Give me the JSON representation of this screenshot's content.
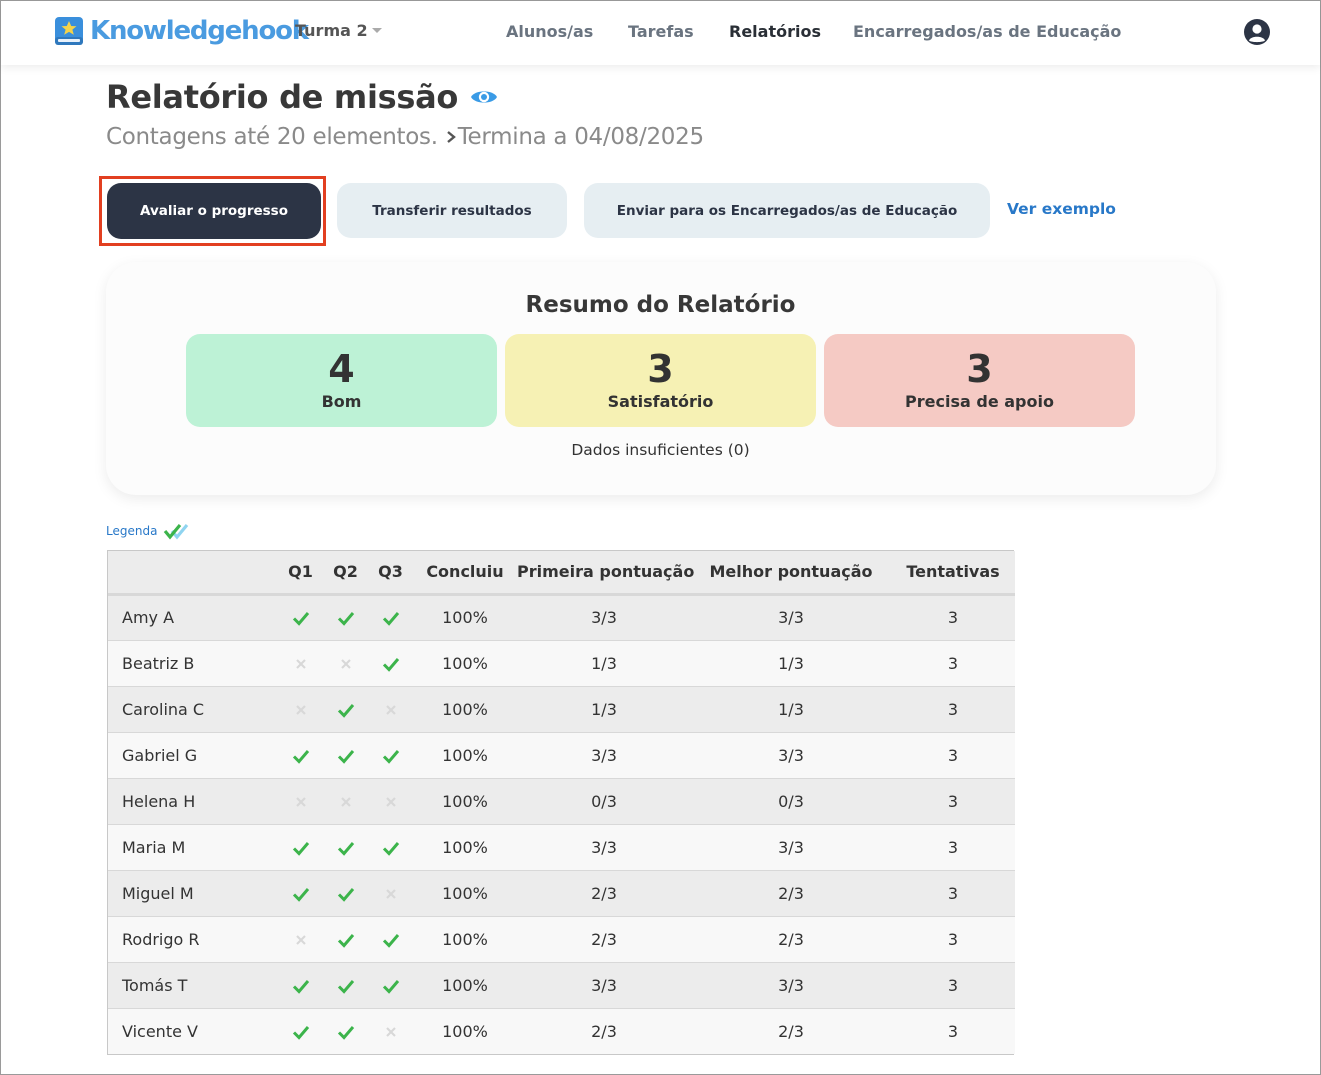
{
  "header": {
    "logo_text": "Knowledgehook",
    "class_name": "Turma 2",
    "nav": [
      {
        "label": "Alunos/as",
        "active": false
      },
      {
        "label": "Tarefas",
        "active": false
      },
      {
        "label": "Relatórios",
        "active": true
      },
      {
        "label": "Encarregados/as de Educação",
        "active": false
      }
    ],
    "user_icon": "user-circle-icon"
  },
  "report": {
    "title": "Relatório de missão",
    "subtitle_count": "Contagens até 20 elementos.",
    "subtitle_end": "Termina a 04/08/2025"
  },
  "actions": {
    "evaluate": "Avaliar o progresso",
    "transfer": "Transferir resultados",
    "send": "Enviar para os Encarregados/as de Educação",
    "example": "Ver exemplo"
  },
  "summary": {
    "title": "Resumo do Relatório",
    "good": {
      "count": "4",
      "label": "Bom"
    },
    "satisfactory": {
      "count": "3",
      "label": "Satisfatório"
    },
    "needs_support": {
      "count": "3",
      "label": "Precisa de apoio"
    },
    "insufficient": "Dados insuficientes (0)"
  },
  "legend": "Legenda",
  "colors": {
    "check": "#3cb44b",
    "cross": "#d8d8d8",
    "accent": "#2878c8",
    "highlight": "#e23f20"
  },
  "table": {
    "headers": [
      "",
      "Q1",
      "Q2",
      "Q3",
      "Concluiu",
      "Primeira pontuação",
      "Melhor pontuação",
      "Tentativas"
    ],
    "rows": [
      {
        "name": "Amy A",
        "q": [
          true,
          true,
          true
        ],
        "completed": "100%",
        "first": "3/3",
        "best": "3/3",
        "attempts": "3"
      },
      {
        "name": "Beatriz B",
        "q": [
          false,
          false,
          true
        ],
        "completed": "100%",
        "first": "1/3",
        "best": "1/3",
        "attempts": "3"
      },
      {
        "name": "Carolina C",
        "q": [
          false,
          true,
          false
        ],
        "completed": "100%",
        "first": "1/3",
        "best": "1/3",
        "attempts": "3"
      },
      {
        "name": "Gabriel G",
        "q": [
          true,
          true,
          true
        ],
        "completed": "100%",
        "first": "3/3",
        "best": "3/3",
        "attempts": "3"
      },
      {
        "name": "Helena H",
        "q": [
          false,
          false,
          false
        ],
        "completed": "100%",
        "first": "0/3",
        "best": "0/3",
        "attempts": "3"
      },
      {
        "name": "Maria M",
        "q": [
          true,
          true,
          true
        ],
        "completed": "100%",
        "first": "3/3",
        "best": "3/3",
        "attempts": "3"
      },
      {
        "name": "Miguel M",
        "q": [
          true,
          true,
          false
        ],
        "completed": "100%",
        "first": "2/3",
        "best": "2/3",
        "attempts": "3"
      },
      {
        "name": "Rodrigo R",
        "q": [
          false,
          true,
          true
        ],
        "completed": "100%",
        "first": "2/3",
        "best": "2/3",
        "attempts": "3"
      },
      {
        "name": "Tomás T",
        "q": [
          true,
          true,
          true
        ],
        "completed": "100%",
        "first": "3/3",
        "best": "3/3",
        "attempts": "3"
      },
      {
        "name": "Vicente V",
        "q": [
          true,
          true,
          false
        ],
        "completed": "100%",
        "first": "2/3",
        "best": "2/3",
        "attempts": "3"
      }
    ]
  }
}
